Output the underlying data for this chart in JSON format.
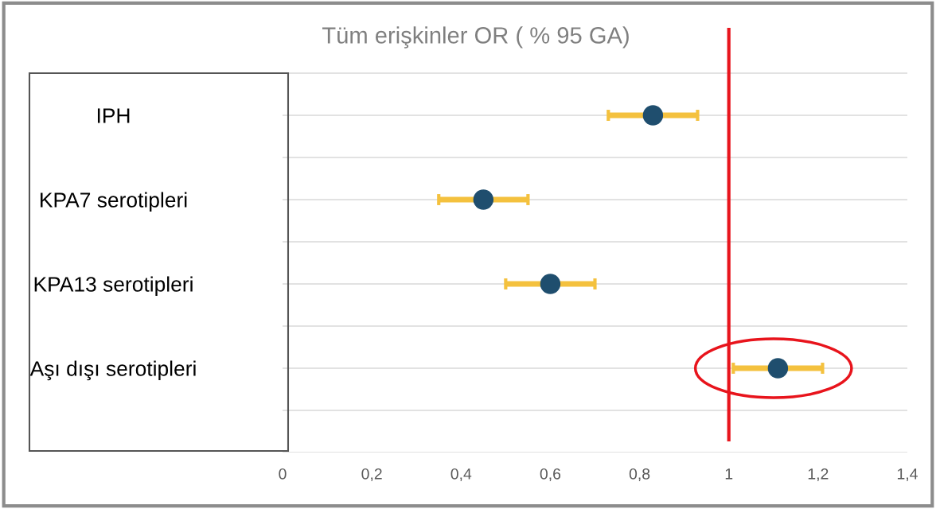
{
  "chart_data": {
    "type": "scatter",
    "orientation": "horizontal",
    "title": "Tüm erişkinler OR ( % 95 GA)",
    "categories": [
      "IPH",
      "KPA7 serotipleri",
      "KPA13 serotipleri",
      "Aşı dışı serotipleri"
    ],
    "series": [
      {
        "color": "#1f4e6e",
        "values": [
          0.83,
          0.45,
          0.6,
          1.11
        ],
        "errors": [
          [
            0.73,
            0.93
          ],
          [
            0.35,
            0.55
          ],
          [
            0.5,
            0.7
          ],
          [
            1.01,
            1.21
          ]
        ]
      }
    ],
    "xlim": [
      0,
      1.4
    ],
    "xticks": [
      0,
      {
        "value": 0.2,
        "label": "0,2"
      },
      {
        "value": 0.4,
        "label": "0,4"
      },
      {
        "value": 0.6,
        "label": "0,6"
      },
      {
        "value": 0.8,
        "label": "0,8"
      },
      1,
      {
        "value": 1.2,
        "label": "1,2"
      },
      {
        "value": 1.4,
        "label": "1,4"
      }
    ],
    "ref_lines": [
      {
        "axis": "x",
        "value": 1,
        "color": "#e8141c",
        "line_style": "solid"
      }
    ],
    "grid": "y",
    "marker": "circle",
    "legend": false
  }
}
